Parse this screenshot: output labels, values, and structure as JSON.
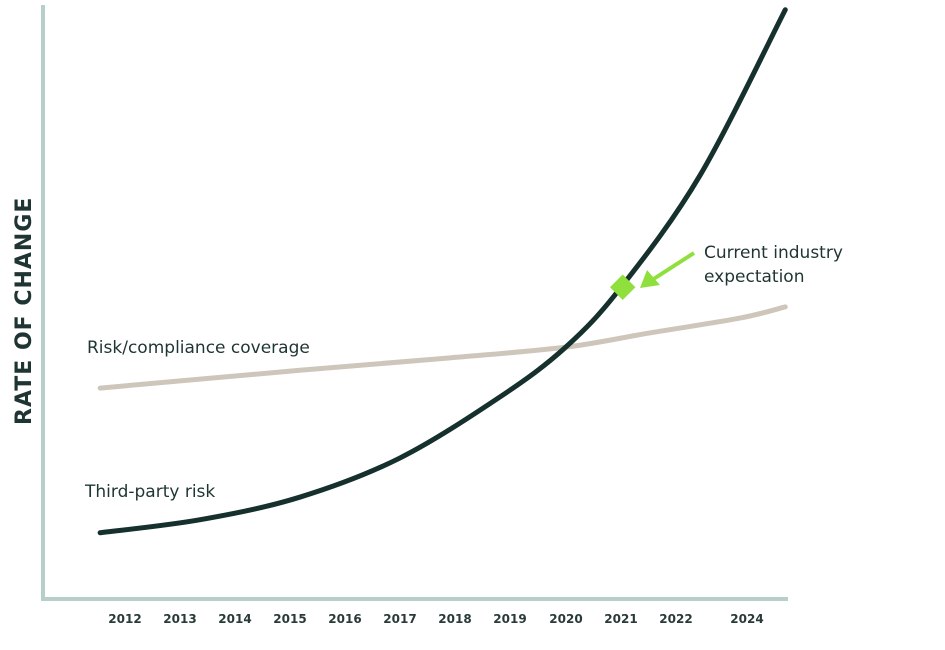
{
  "chart_data": {
    "type": "line",
    "title": "",
    "xlabel": "",
    "ylabel": "RATE OF CHANGE",
    "categories": [
      "2012",
      "2013",
      "2014",
      "2015",
      "2016",
      "2017",
      "2018",
      "2019",
      "2020",
      "2021",
      "2022",
      "2024"
    ],
    "ylim": [
      0,
      100
    ],
    "grid": false,
    "series": [
      {
        "name": "Third-party risk",
        "color": "#15302d",
        "x": [
          2011.55,
          2013.36,
          2015.16,
          2016.97,
          2018.78,
          2019.97,
          2020.97,
          2022.4,
          2023.94
        ],
        "y": [
          11.0,
          13.2,
          17.0,
          23.6,
          33.9,
          42.3,
          52.4,
          71.3,
          99.2
        ]
      },
      {
        "name": "Risk/compliance coverage",
        "color": "#cfc6bb",
        "x": [
          2011.55,
          2015.16,
          2017.88,
          2019.97,
          2021.49,
          2023.12,
          2023.94
        ],
        "y": [
          35.4,
          38.4,
          40.5,
          42.3,
          44.7,
          47.2,
          49.1
        ]
      }
    ],
    "annotations": [
      {
        "text_lines": [
          "Current industry",
          "expectation"
        ],
        "x": 2021,
        "y": 52.4,
        "marker_color": "#8fe03c"
      }
    ],
    "axis_color": "#b7cfcb"
  }
}
